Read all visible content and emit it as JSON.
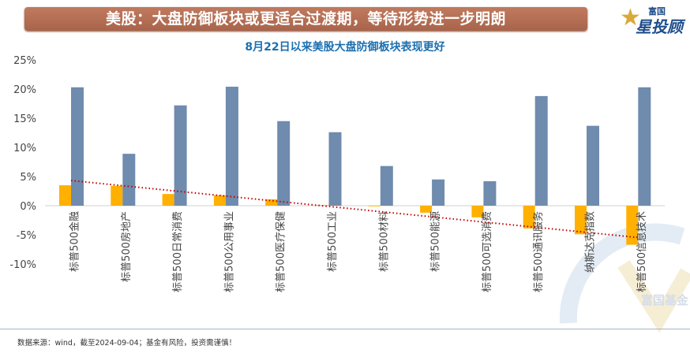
{
  "header": {
    "title": "美股：大盘防御板块或更适合过渡期，等待形势进一步明朗",
    "logo_text": [
      "富国",
      "星投顾"
    ]
  },
  "watermark": "富国基金",
  "footer": {
    "source": "数据来源：wind，截至2024-09-04；基金有风险，投资需谨慎！"
  },
  "colors": {
    "series_a": "#FFB000",
    "series_b": "#6F8BAE",
    "trendline": "#C00000",
    "banner": "#B36B50"
  },
  "chart_data": {
    "type": "bar",
    "title": "8月22日以来美股大盘防御板块表现更好",
    "categories": [
      "标普500金融",
      "标普500房地产",
      "标普500日常消费",
      "标普500公用事业",
      "标普500医疗保健",
      "标普500工业",
      "标普500材料",
      "标普500能源",
      "标普500可选消费",
      "标普500通讯服务",
      "纳斯达克指数",
      "标普500信息技术"
    ],
    "series": [
      {
        "values": [
          3.5,
          3.4,
          2.0,
          1.8,
          1.1,
          0.1,
          -0.1,
          -1.2,
          -2.0,
          -3.9,
          -4.9,
          -6.7
        ],
        "color": "#FFB000"
      },
      {
        "values": [
          20.3,
          8.9,
          17.2,
          20.4,
          14.5,
          12.6,
          6.8,
          4.5,
          4.2,
          18.8,
          13.7,
          20.3
        ],
        "color": "#6F8BAE"
      }
    ],
    "trendline": {
      "series": 0,
      "type": "linear",
      "style": "dotted"
    },
    "yticks": [
      "25%",
      "20%",
      "15%",
      "10%",
      "5%",
      "0%",
      "-5%",
      "-10%"
    ],
    "ylim": [
      -10,
      25
    ],
    "grid": false,
    "legend": "none"
  }
}
